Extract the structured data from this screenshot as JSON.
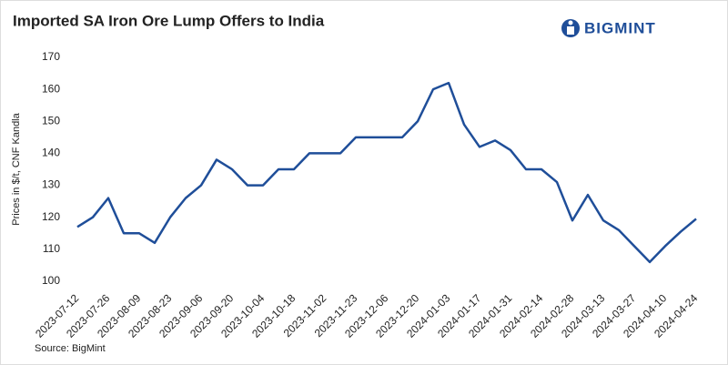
{
  "chart_data": {
    "type": "line",
    "title": "Imported SA Iron Ore Lump Offers to India",
    "logo": "BIGMINT",
    "ylabel": "Prices in $/t, CNF Kandla",
    "source": "Source: BigMint",
    "categories": [
      "2023-07-12",
      null,
      "2023-07-26",
      null,
      "2023-08-09",
      null,
      "2023-08-23",
      null,
      "2023-09-06",
      null,
      "2023-09-20",
      null,
      "2023-10-04",
      null,
      "2023-10-18",
      null,
      "2023-11-02",
      null,
      "2023-11-23",
      null,
      "2023-12-06",
      null,
      "2023-12-20",
      null,
      "2024-01-03",
      null,
      "2024-01-17",
      null,
      "2024-01-31",
      null,
      "2024-02-14",
      null,
      "2024-02-28",
      null,
      "2024-03-13",
      null,
      "2024-03-27",
      null,
      "2024-04-10",
      null,
      "2024-04-24"
    ],
    "series": [
      {
        "name": "Imported SA Iron Ore Lump",
        "color": "#1f4e99",
        "values": [
          117,
          120,
          126,
          115,
          115,
          112,
          120,
          126,
          130,
          138,
          135,
          130,
          130,
          135,
          135,
          140,
          140,
          140,
          145,
          145,
          145,
          145,
          150,
          160,
          162,
          149,
          142,
          144,
          141,
          135,
          135,
          131,
          119,
          127,
          119,
          116,
          111,
          106,
          111,
          115.5,
          119.5
        ]
      }
    ],
    "ylim": [
      100,
      170
    ],
    "yticks": [
      100,
      110,
      120,
      130,
      140,
      150,
      160,
      170
    ],
    "grid": false
  }
}
